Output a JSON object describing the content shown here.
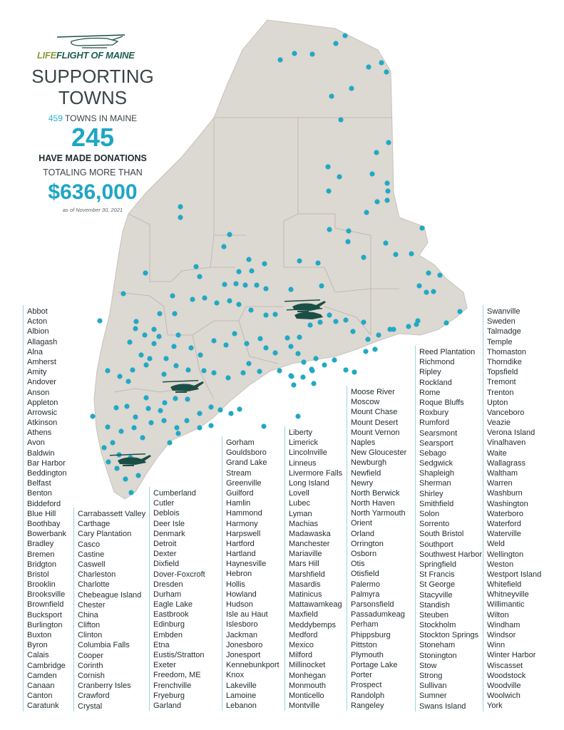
{
  "logo": {
    "part1": "LIFE",
    "part2": "FLIGHT OF MAINE"
  },
  "headline": [
    "SUPPORTING",
    "TOWNS"
  ],
  "stats": {
    "towns_total": "459",
    "towns_label": "TOWNS IN MAINE",
    "donating_towns": "245",
    "donating_label": "HAVE MADE DONATIONS",
    "totaling_label": "TOTALING MORE THAN",
    "amount": "$636,000",
    "as_of": "as of November 30, 2021"
  },
  "colors": {
    "map_fill": "#dcd8d2",
    "dot": "#21a9c4",
    "helicopter": "#1b4f45",
    "accent": "#1ea6c4"
  },
  "icons": [
    "helicopter-icon"
  ],
  "town_columns": [
    [
      "Abbot",
      "Acton",
      "Albion",
      "Allagash",
      "Alna",
      "Amherst",
      "Amity",
      "Andover",
      "Anson",
      "Appleton",
      "Arrowsic",
      "Atkinson",
      "Athens",
      "Avon",
      "Baldwin",
      "Bar Harbor",
      "Beddington",
      "Belfast",
      "Benton",
      "Biddeford",
      "Blue Hill",
      "Boothbay",
      "Bowerbank",
      "Bradley",
      "Bremen",
      "Bridgton",
      "Bristol",
      "Brooklin",
      "Brooksville",
      "Brownfield",
      "Bucksport",
      "Burlington",
      "Buxton",
      "Byron",
      "Calais",
      "Cambridge",
      "Camden",
      "Canaan",
      "Canton",
      "Caratunk"
    ],
    [
      "Carrabassett Valley",
      "Carthage",
      "Cary Plantation",
      "Casco",
      "Castine",
      "Caswell",
      "Charleston",
      "Charlotte",
      "Chebeague Island",
      "Chester",
      "China",
      "Clifton",
      "Clinton",
      "Columbia Falls",
      "Cooper",
      "Corinth",
      "Cornish",
      "Cranberry Isles",
      "Crawford",
      "Crystal"
    ],
    [
      "Cumberland",
      "Cutler",
      "Deblois",
      "Deer Isle",
      "Denmark",
      "Detroit",
      "Dexter",
      "Dixfield",
      "Dover-Foxcroft",
      "Dresden",
      "Durham",
      "Eagle Lake",
      "Eastbrook",
      "Edinburg",
      "Embden",
      "Etna",
      "Eustis/Stratton",
      "Exeter",
      "Freedom, ME",
      "Frenchville",
      "Fryeburg",
      "Garland"
    ],
    [
      "Gorham",
      "Gouldsboro",
      "Grand Lake",
      "Stream",
      "Greenville",
      "Guilford",
      "Hamlin",
      "Hammond",
      "Harmony",
      "Harpswell",
      "Hartford",
      "Hartland",
      "Haynesville",
      "Hebron",
      "Hollis",
      "Howland",
      "Hudson",
      "Isle au Haut",
      "Islesboro",
      "Jackman",
      "Jonesboro",
      "Jonesport",
      "Kennebunkport",
      "Knox",
      "Lakeville",
      "Lamoine",
      "Lebanon"
    ],
    [
      "Liberty",
      "Limerick",
      "Lincolnville",
      "Linneus",
      "Livermore Falls",
      "Long Island",
      "Lovell",
      "Lubec",
      "Lyman",
      "Machias",
      "Madawaska",
      "Manchester",
      "Mariaville",
      "Mars Hill",
      "Marshfield",
      "Masardis",
      "Matinicus",
      "Mattawamkeag",
      "Maxfield",
      "Meddybemps",
      "Medford",
      "Mexico",
      "Milford",
      "Millinocket",
      "Monhegan",
      "Monmouth",
      "Monticello",
      "Montville"
    ],
    [
      "Moose River",
      "Moscow",
      "Mount Chase",
      "Mount Desert",
      "Mount Vernon",
      "Naples",
      "New Gloucester",
      "Newburgh",
      "Newfield",
      "Newry",
      "North Berwick",
      "North Haven",
      "North Yarmouth",
      "Orient",
      "Orland",
      "Orrington",
      "Osborn",
      "Otis",
      "Otisfield",
      "Palermo",
      "Palmyra",
      "Parsonsfield",
      "Passadumkeag",
      "Perham",
      "Phippsburg",
      "Pittston",
      "Plymouth",
      "Portage Lake",
      "Porter",
      "Prospect",
      "Randolph",
      "Rangeley"
    ],
    [
      "Reed Plantation",
      "Richmond",
      "Ripley",
      "Rockland",
      "Rome",
      "Roque Bluffs",
      "Roxbury",
      "Rumford",
      "Searsmont",
      "Searsport",
      "Sebago",
      "Sedgwick",
      "Shapleigh",
      "Sherman",
      "Shirley",
      "Smithfield",
      "Solon",
      "Sorrento",
      "South Bristol",
      "Southport",
      "Southwest Harbor",
      "Springfield",
      "St Francis",
      "St George",
      "Stacyville",
      "Standish",
      "Steuben",
      "Stockholm",
      "Stockton Springs",
      "Stoneham",
      "Stonington",
      "Stow",
      "Strong",
      "Sullivan",
      "Sumner",
      "Swans Island"
    ],
    [
      "Swanville",
      "Sweden",
      "Talmadge",
      "Temple",
      "Thomaston",
      "Thorndike",
      "Topsfield",
      "Tremont",
      "Trenton",
      "Upton",
      "Vanceboro",
      "Veazie",
      "Verona Island",
      "Vinalhaven",
      "Waite",
      "Wallagrass",
      "Waltham",
      "Warren",
      "Washburn",
      "Washington",
      "Waterboro",
      "Waterford",
      "Waterville",
      "Weld",
      "Wellington",
      "Weston",
      "Westport Island",
      "Whitefield",
      "Whitneyville",
      "Willimantic",
      "Wilton",
      "Windham",
      "Windsor",
      "Winn",
      "Winter Harbor",
      "Wiscasset",
      "Woodstock",
      "Woodville",
      "Woolwich",
      "York"
    ]
  ]
}
